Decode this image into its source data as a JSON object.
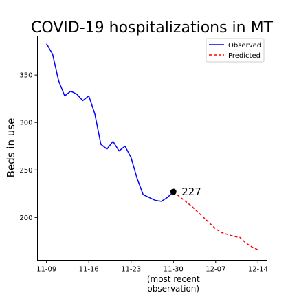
{
  "chart_data": {
    "type": "line",
    "title": "COVID-19 hospitalizations in MT",
    "xlabel": "(most recent\nobservation)",
    "ylabel": "Beds in use",
    "x_tick_labels": [
      "11-09",
      "11-16",
      "11-23",
      "11-30",
      "12-07",
      "12-14"
    ],
    "x_tick_days": [
      0,
      7,
      14,
      21,
      28,
      35
    ],
    "y_ticks": [
      200,
      250,
      300,
      350
    ],
    "xlim": [
      -1.5,
      36.5
    ],
    "ylim": [
      155,
      391
    ],
    "grid": false,
    "legend_position": "top-right",
    "series": [
      {
        "name": "Observed",
        "color": "#0000ff",
        "style": "solid",
        "x": [
          0,
          1,
          2,
          3,
          4,
          5,
          6,
          7,
          8,
          9,
          10,
          11,
          12,
          13,
          14,
          15,
          16,
          17,
          18,
          19,
          20,
          21
        ],
        "values": [
          383,
          372,
          344,
          328,
          333,
          330,
          323,
          328,
          309,
          277,
          272,
          280,
          270,
          275,
          263,
          241,
          224,
          221,
          218,
          217,
          221,
          227
        ]
      },
      {
        "name": "Predicted",
        "color": "#ff0000",
        "style": "dashed",
        "x": [
          21,
          22,
          23,
          24,
          25,
          26,
          27,
          28,
          29,
          30,
          31,
          32,
          33,
          34,
          35
        ],
        "values": [
          227,
          222,
          217,
          212,
          206,
          200,
          194,
          188,
          184,
          182,
          180,
          179,
          173,
          169,
          166
        ]
      }
    ],
    "annotation": {
      "x": 21,
      "y": 227,
      "label": "227"
    }
  }
}
